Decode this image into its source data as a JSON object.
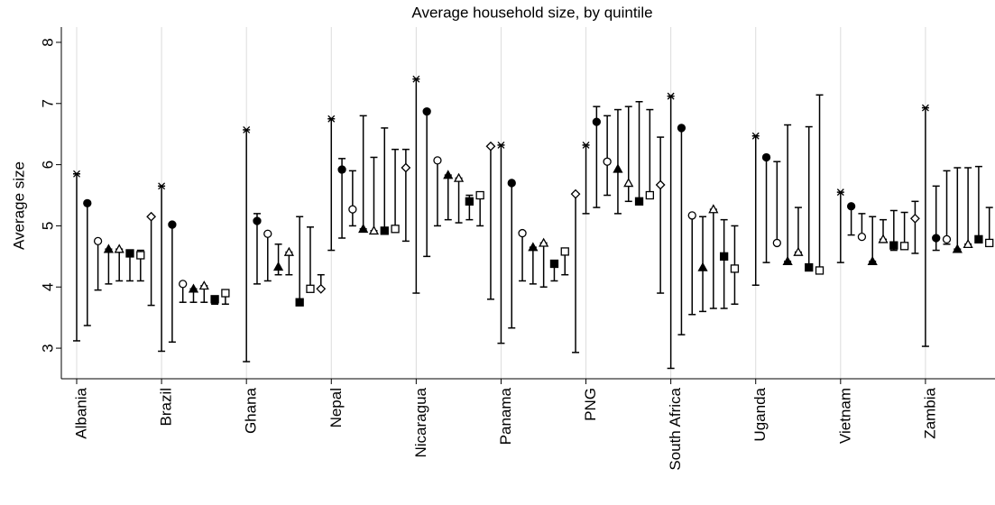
{
  "chart_data": {
    "type": "errorbar",
    "title": "Average household size, by quintile",
    "ylabel": "Average size",
    "categories": [
      "Albania",
      "Brazil",
      "Ghana",
      "Nepal",
      "Nicaragua",
      "Panama",
      "PNG",
      "South Africa",
      "Uganda",
      "Vietnam",
      "Zambia"
    ],
    "ylim": [
      2.5,
      8.25
    ],
    "yticks": [
      3,
      4,
      5,
      6,
      7,
      8
    ],
    "grid": true,
    "series": [
      {
        "marker": "x",
        "color": "#000000",
        "values": [
          5.85,
          5.65,
          6.57,
          6.75,
          7.4,
          6.32,
          6.32,
          7.12,
          6.47,
          5.55,
          6.93
        ],
        "low": [
          3.12,
          2.95,
          2.78,
          4.6,
          3.9,
          3.08,
          5.2,
          2.67,
          4.03,
          4.4,
          3.03
        ],
        "high": [
          5.85,
          5.65,
          6.57,
          6.75,
          7.4,
          6.32,
          6.32,
          7.12,
          6.47,
          5.55,
          6.93
        ]
      },
      {
        "marker": "circle-filled",
        "color": "#000000",
        "values": [
          5.37,
          5.02,
          5.08,
          5.92,
          6.87,
          5.7,
          6.7,
          6.6,
          6.12,
          5.32,
          4.8
        ],
        "low": [
          3.37,
          3.1,
          4.05,
          4.8,
          4.5,
          3.33,
          5.3,
          3.22,
          4.4,
          4.85,
          4.6
        ],
        "high": [
          5.37,
          5.02,
          5.2,
          6.1,
          6.87,
          5.7,
          6.95,
          6.6,
          6.12,
          5.32,
          5.65
        ]
      },
      {
        "marker": "circle-open",
        "color": "#000000",
        "values": [
          4.75,
          4.05,
          4.87,
          5.27,
          6.07,
          4.88,
          6.05,
          5.17,
          4.72,
          4.82,
          4.78
        ],
        "low": [
          3.95,
          3.75,
          4.1,
          5.0,
          5.0,
          4.1,
          5.5,
          3.55,
          4.7,
          4.8,
          4.7
        ],
        "high": [
          4.75,
          4.05,
          4.87,
          5.9,
          6.07,
          4.88,
          6.8,
          5.17,
          6.05,
          5.2,
          5.9
        ]
      },
      {
        "marker": "triangle-filled",
        "color": "#000000",
        "values": [
          4.62,
          3.97,
          4.33,
          4.95,
          5.83,
          4.65,
          5.93,
          4.32,
          4.42,
          4.42,
          4.62
        ],
        "low": [
          4.05,
          3.75,
          4.2,
          4.95,
          5.1,
          4.05,
          5.2,
          3.6,
          4.42,
          4.42,
          4.62
        ],
        "high": [
          4.62,
          3.97,
          4.7,
          6.8,
          5.83,
          4.65,
          6.9,
          5.15,
          6.65,
          5.15,
          5.95
        ]
      },
      {
        "marker": "triangle-open",
        "color": "#000000",
        "values": [
          4.62,
          4.02,
          4.57,
          4.92,
          5.78,
          4.72,
          5.7,
          5.27,
          4.57,
          4.78,
          4.7
        ],
        "low": [
          4.1,
          3.75,
          4.2,
          4.92,
          5.05,
          4.0,
          5.4,
          3.65,
          4.57,
          4.78,
          4.7
        ],
        "high": [
          4.62,
          4.02,
          4.57,
          6.12,
          5.78,
          4.72,
          6.95,
          5.27,
          5.3,
          5.1,
          5.95
        ]
      },
      {
        "marker": "square-filled",
        "color": "#000000",
        "values": [
          4.55,
          3.8,
          3.75,
          4.92,
          5.4,
          4.38,
          5.4,
          4.5,
          4.32,
          4.68,
          4.78
        ],
        "low": [
          4.1,
          3.72,
          3.75,
          4.92,
          5.1,
          4.1,
          5.4,
          3.65,
          4.32,
          4.6,
          4.78
        ],
        "high": [
          4.55,
          3.8,
          5.15,
          6.6,
          5.5,
          4.38,
          7.03,
          5.1,
          6.62,
          5.25,
          5.97
        ]
      },
      {
        "marker": "square-open",
        "color": "#000000",
        "values": [
          4.52,
          3.9,
          3.97,
          4.95,
          5.5,
          4.58,
          5.5,
          4.3,
          4.27,
          4.67,
          4.72
        ],
        "low": [
          4.1,
          3.72,
          3.97,
          4.95,
          5.0,
          4.2,
          5.5,
          3.72,
          4.27,
          4.62,
          4.72
        ],
        "high": [
          4.6,
          3.95,
          4.98,
          6.25,
          5.5,
          4.58,
          6.9,
          5.0,
          7.14,
          5.22,
          5.3
        ]
      },
      {
        "marker": "diamond-open",
        "color": "#000000",
        "values": [
          5.15,
          null,
          3.97,
          5.95,
          6.3,
          5.52,
          5.67,
          null,
          null,
          5.12,
          null
        ],
        "low": [
          3.7,
          null,
          3.97,
          4.75,
          3.8,
          2.93,
          3.9,
          null,
          null,
          4.55,
          null
        ],
        "high": [
          5.15,
          null,
          4.2,
          6.25,
          6.3,
          5.52,
          6.45,
          null,
          null,
          5.4,
          null
        ]
      }
    ]
  }
}
